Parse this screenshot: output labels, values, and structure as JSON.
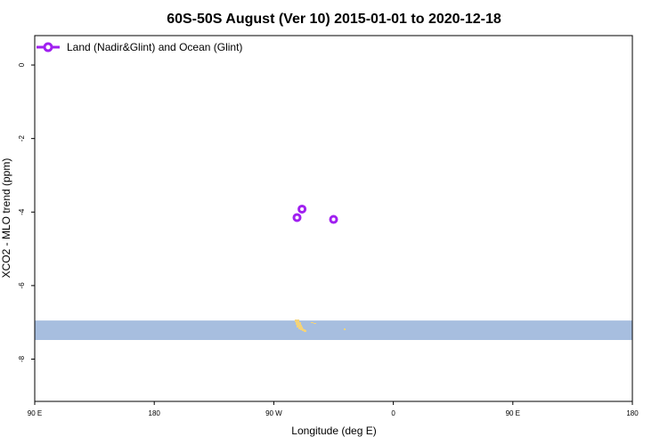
{
  "chart_data": {
    "type": "scatter",
    "title": "60S-50S August (Ver 10)   2015-01-01 to 2020-12-18",
    "xlabel": "Longitude (deg E)",
    "ylabel": "XCO2 - MLO trend (ppm)",
    "xlim": [
      90,
      450
    ],
    "ylim": [
      -9.15,
      0.8
    ],
    "x_ticks": [
      {
        "value": 90,
        "label": "90 E"
      },
      {
        "value": 162,
        "label": "180"
      },
      {
        "value": 234,
        "label": "90 W"
      },
      {
        "value": 306,
        "label": "0"
      },
      {
        "value": 378,
        "label": "90 E"
      },
      {
        "value": 450,
        "label": "180"
      }
    ],
    "y_ticks": [
      0,
      -2,
      -4,
      -6,
      -8
    ],
    "grid": false,
    "legend_position": "top-left",
    "series": [
      {
        "name": "Land (Nadir&Glint) and Ocean (Glint)",
        "color": "#a020f0",
        "marker": "open-circle",
        "x": [
          248,
          251,
          270
        ],
        "y": [
          -4.15,
          -3.92,
          -4.2
        ]
      }
    ],
    "map_band": {
      "y_range": [
        -7.48,
        -6.95
      ],
      "ocean_color": "#a7bedf",
      "land_color": "#f3d37a"
    }
  }
}
